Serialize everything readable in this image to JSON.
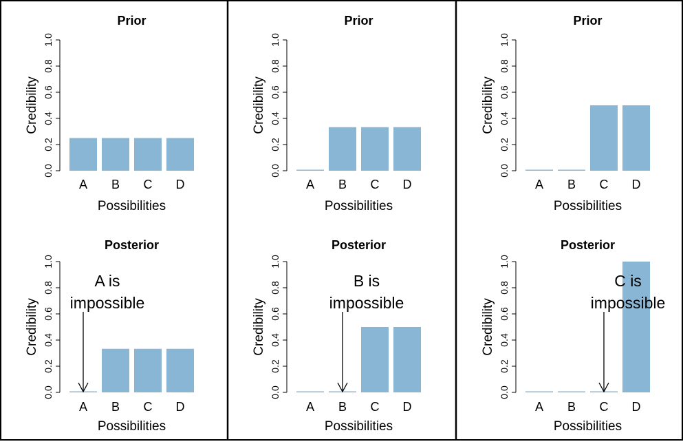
{
  "colors": {
    "bar": "#8ab6d6",
    "axis": "#000000",
    "frame": "#000000"
  },
  "chart_data": [
    {
      "type": "bar",
      "title": "Prior",
      "xlabel": "Possibilities",
      "ylabel": "Credibility",
      "categories": [
        "A",
        "B",
        "C",
        "D"
      ],
      "values": [
        0.25,
        0.25,
        0.25,
        0.25
      ],
      "ylim": [
        0,
        1
      ],
      "yticks": [
        "0.0",
        "0.2",
        "0.4",
        "0.6",
        "0.8",
        "1.0"
      ],
      "annotation": null
    },
    {
      "type": "bar",
      "title": "Prior",
      "xlabel": "Possibilities",
      "ylabel": "Credibility",
      "categories": [
        "A",
        "B",
        "C",
        "D"
      ],
      "values": [
        0,
        0.333,
        0.333,
        0.333
      ],
      "ylim": [
        0,
        1
      ],
      "yticks": [
        "0.0",
        "0.2",
        "0.4",
        "0.6",
        "0.8",
        "1.0"
      ],
      "annotation": null
    },
    {
      "type": "bar",
      "title": "Prior",
      "xlabel": "Possibilities",
      "ylabel": "Credibility",
      "categories": [
        "A",
        "B",
        "C",
        "D"
      ],
      "values": [
        0,
        0,
        0.5,
        0.5
      ],
      "ylim": [
        0,
        1
      ],
      "yticks": [
        "0.0",
        "0.2",
        "0.4",
        "0.6",
        "0.8",
        "1.0"
      ],
      "annotation": null
    },
    {
      "type": "bar",
      "title": "Posterior",
      "xlabel": "Possibilities",
      "ylabel": "Credibility",
      "categories": [
        "A",
        "B",
        "C",
        "D"
      ],
      "values": [
        0,
        0.333,
        0.333,
        0.333
      ],
      "ylim": [
        0,
        1
      ],
      "yticks": [
        "0.0",
        "0.2",
        "0.4",
        "0.6",
        "0.8",
        "1.0"
      ],
      "annotation": {
        "lines": [
          "A is",
          "impossible"
        ],
        "target": "A"
      }
    },
    {
      "type": "bar",
      "title": "Posterior",
      "xlabel": "Possibilities",
      "ylabel": "Credibility",
      "categories": [
        "A",
        "B",
        "C",
        "D"
      ],
      "values": [
        0,
        0,
        0.5,
        0.5
      ],
      "ylim": [
        0,
        1
      ],
      "yticks": [
        "0.0",
        "0.2",
        "0.4",
        "0.6",
        "0.8",
        "1.0"
      ],
      "annotation": {
        "lines": [
          "B is",
          "impossible"
        ],
        "target": "B"
      }
    },
    {
      "type": "bar",
      "title": "Posterior",
      "xlabel": "Possibilities",
      "ylabel": "Credibility",
      "categories": [
        "A",
        "B",
        "C",
        "D"
      ],
      "values": [
        0,
        0,
        0,
        1
      ],
      "ylim": [
        0,
        1
      ],
      "yticks": [
        "0.0",
        "0.2",
        "0.4",
        "0.6",
        "0.8",
        "1.0"
      ],
      "annotation": {
        "lines": [
          "C is",
          "impossible"
        ],
        "target": "C"
      }
    }
  ]
}
